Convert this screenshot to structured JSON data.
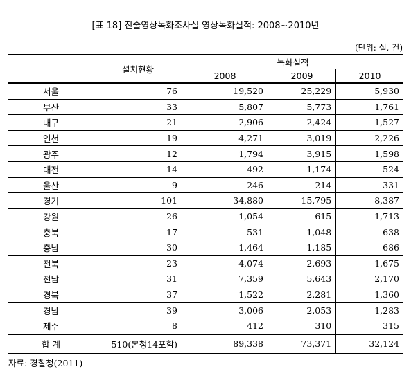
{
  "title": "[표 18] 진술영상녹화조사실 영상녹화실적: 2008~2010년",
  "unit_note": "(단위: 실, 건)",
  "table": {
    "header": {
      "region": "",
      "installed": "설치현황",
      "group": "녹화실적",
      "years": [
        "2008",
        "2009",
        "2010"
      ]
    },
    "rows": [
      [
        "서울",
        "76",
        "19,520",
        "25,229",
        "5,930"
      ],
      [
        "부산",
        "33",
        "5,807",
        "5,773",
        "1,761"
      ],
      [
        "대구",
        "21",
        "2,906",
        "2,424",
        "1,527"
      ],
      [
        "인천",
        "19",
        "4,271",
        "3,019",
        "2,226"
      ],
      [
        "광주",
        "12",
        "1,794",
        "3,915",
        "1,598"
      ],
      [
        "대전",
        "14",
        "492",
        "1,174",
        "524"
      ],
      [
        "울산",
        "9",
        "246",
        "214",
        "331"
      ],
      [
        "경기",
        "101",
        "34,880",
        "15,795",
        "8,387"
      ],
      [
        "강원",
        "26",
        "1,054",
        "615",
        "1,713"
      ],
      [
        "충북",
        "17",
        "531",
        "1,048",
        "638"
      ],
      [
        "충남",
        "30",
        "1,464",
        "1,185",
        "686"
      ],
      [
        "전북",
        "23",
        "4,074",
        "2,693",
        "1,675"
      ],
      [
        "전남",
        "31",
        "7,359",
        "5,643",
        "2,170"
      ],
      [
        "경북",
        "37",
        "1,522",
        "2,281",
        "1,360"
      ],
      [
        "경남",
        "39",
        "3,006",
        "2,053",
        "1,283"
      ],
      [
        "제주",
        "8",
        "412",
        "310",
        "315"
      ]
    ],
    "total": [
      "합 계",
      "510(본청14포함)",
      "89,338",
      "73,371",
      "32,124"
    ]
  },
  "source": "자료: 경찰청(2011)"
}
